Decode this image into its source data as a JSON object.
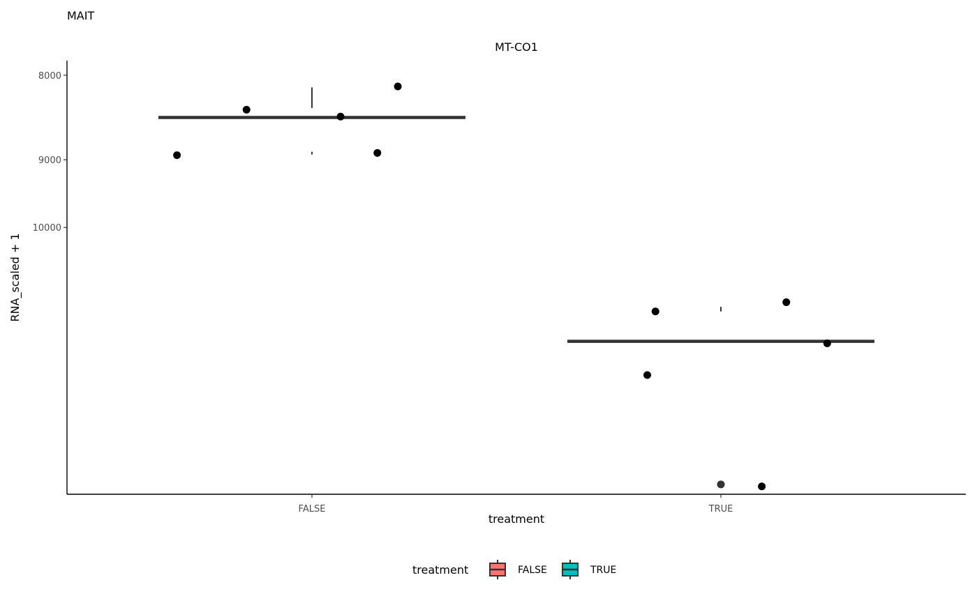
{
  "chart_data": {
    "type": "box",
    "title": "MAIT",
    "subtitle": "MT-CO1",
    "xlabel": "treatment",
    "ylabel": "RNA_scaled + 1",
    "categories": [
      "FALSE",
      "TRUE"
    ],
    "y_scale": "reciprocal",
    "ylim": [
      7850,
      17800
    ],
    "y_ticks": [
      8000,
      9000,
      10000
    ],
    "grid": false,
    "legend": {
      "title": "treatment",
      "position": "bottom",
      "entries": [
        "FALSE",
        "TRUE"
      ]
    },
    "colors": {
      "FALSE": "#F8766D",
      "TRUE": "#00BFC4",
      "outline": "#333333",
      "point": "#000000"
    },
    "series": [
      {
        "name": "FALSE",
        "box": {
          "whisker_low": 8130,
          "q1": 8360,
          "median": 8470,
          "q3": 8895,
          "whisker_high": 8930
        },
        "outliers": [],
        "points": [
          {
            "x": -0.33,
            "y": 8940
          },
          {
            "x": -0.16,
            "y": 8380
          },
          {
            "x": 0.07,
            "y": 8460
          },
          {
            "x": 0.16,
            "y": 8910
          },
          {
            "x": 0.21,
            "y": 8120
          }
        ]
      },
      {
        "name": "TRUE",
        "box": {
          "whisker_low": 11500,
          "q1": 11600,
          "median": 12300,
          "q3": 13200,
          "whisker_high": 13200
        },
        "outliers": [
          17300
        ],
        "points": [
          {
            "x": -0.18,
            "y": 13200
          },
          {
            "x": -0.16,
            "y": 11600
          },
          {
            "x": 0.1,
            "y": 17400
          },
          {
            "x": 0.16,
            "y": 11400
          },
          {
            "x": 0.26,
            "y": 12350
          }
        ]
      }
    ]
  }
}
